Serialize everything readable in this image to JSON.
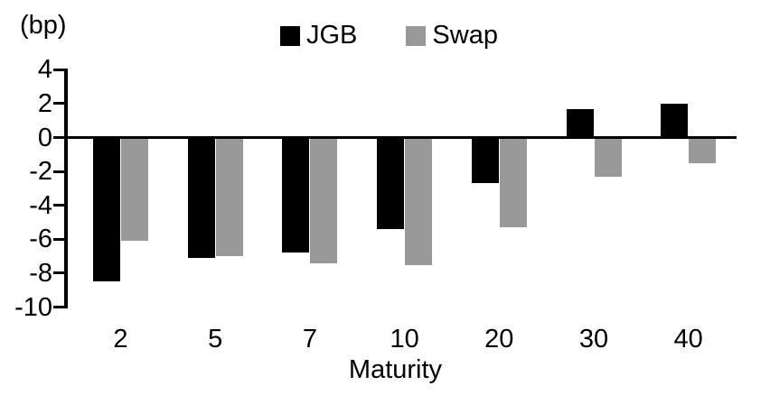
{
  "chart_data": {
    "type": "bar",
    "title": "",
    "unit_label": "(bp)",
    "xlabel": "Maturity",
    "ylabel": "(bp)",
    "categories": [
      "2",
      "5",
      "7",
      "10",
      "20",
      "30",
      "40"
    ],
    "series": [
      {
        "name": "JGB",
        "color": "#000000",
        "values": [
          -8.5,
          -7.1,
          -6.8,
          -5.4,
          -2.7,
          1.7,
          2.0
        ]
      },
      {
        "name": "Swap",
        "color": "#999999",
        "values": [
          -6.1,
          -7.0,
          -7.4,
          -7.5,
          -5.3,
          -2.3,
          -1.5
        ]
      }
    ],
    "ylim": [
      -10,
      4
    ],
    "yticks": [
      4,
      2,
      0,
      -2,
      -4,
      -6,
      -8,
      -10
    ],
    "grid": false,
    "legend_position": "top-center",
    "axis_color": "#000000",
    "background_color": "#ffffff"
  }
}
